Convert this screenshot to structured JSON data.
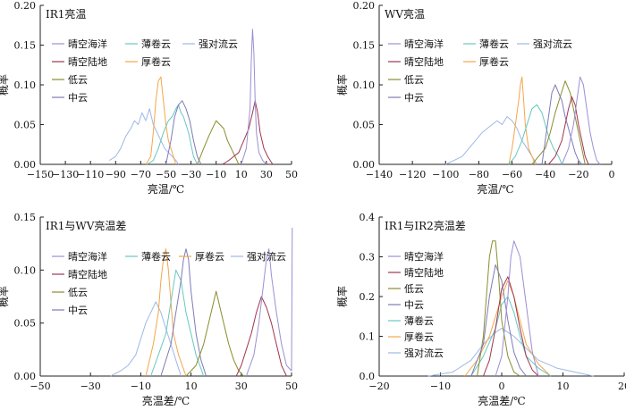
{
  "colors": {
    "ocean": "#9c8fd4",
    "land": "#a0354f",
    "low": "#8a8d2c",
    "mid": "#7e7bb8",
    "cirrostratus": "#66c8c0",
    "cirrus": "#f4a64a",
    "conv": "#9db8e8"
  },
  "chart_data": [
    {
      "type": "line",
      "title": "IR1亮温",
      "xlabel": "亮温/℃",
      "ylabel": "概率",
      "xlim": [
        -150,
        50
      ],
      "ylim": [
        0,
        0.2
      ],
      "xticks": [
        -150,
        -130,
        -110,
        -90,
        -70,
        -50,
        -30,
        -10,
        10,
        30,
        50
      ],
      "yticks": [
        "0.00",
        "0.05",
        "0.10",
        "0.15",
        "0.20"
      ],
      "legend": [
        "晴空海洋",
        "薄卷云",
        "强对流云",
        "晴空陆地",
        "厚卷云",
        "低云",
        "中云"
      ],
      "series": [
        {
          "key": "conv",
          "name": "强对流云",
          "x": [
            -95,
            -90,
            -86,
            -82,
            -78,
            -75,
            -72,
            -69,
            -66,
            -63,
            -60,
            -57,
            -54,
            -51,
            -48,
            -45,
            -42,
            -40
          ],
          "y": [
            0.005,
            0.01,
            0.02,
            0.035,
            0.045,
            0.055,
            0.05,
            0.065,
            0.055,
            0.07,
            0.05,
            0.04,
            0.03,
            0.02,
            0.015,
            0.01,
            0.005,
            0
          ]
        },
        {
          "key": "cirrus",
          "name": "厚卷云",
          "x": [
            -66,
            -62,
            -60,
            -58,
            -56,
            -54,
            -52,
            -50,
            -48,
            -46,
            -44,
            -42
          ],
          "y": [
            0,
            0.01,
            0.04,
            0.08,
            0.105,
            0.11,
            0.08,
            0.05,
            0.03,
            0.02,
            0.01,
            0
          ]
        },
        {
          "key": "cirrostratus",
          "name": "薄卷云",
          "x": [
            -65,
            -60,
            -56,
            -52,
            -48,
            -45,
            -42,
            -40,
            -38,
            -36,
            -34,
            -32,
            -30,
            -28,
            -25
          ],
          "y": [
            0,
            0.005,
            0.02,
            0.04,
            0.055,
            0.06,
            0.07,
            0.075,
            0.065,
            0.06,
            0.05,
            0.04,
            0.025,
            0.01,
            0
          ]
        },
        {
          "key": "mid",
          "name": "中云",
          "x": [
            -50,
            -46,
            -43,
            -40,
            -37,
            -34,
            -31,
            -28,
            -25,
            -22
          ],
          "y": [
            0,
            0.03,
            0.06,
            0.075,
            0.08,
            0.07,
            0.055,
            0.03,
            0.01,
            0
          ]
        },
        {
          "key": "low",
          "name": "低云",
          "x": [
            -25,
            -20,
            -16,
            -13,
            -10,
            -7,
            -4,
            -1,
            2,
            5,
            8
          ],
          "y": [
            0,
            0.02,
            0.035,
            0.045,
            0.055,
            0.05,
            0.045,
            0.03,
            0.02,
            0.01,
            0
          ]
        },
        {
          "key": "land",
          "name": "晴空陆地",
          "x": [
            -5,
            0,
            4,
            8,
            12,
            16,
            19,
            21,
            23,
            25,
            28,
            31,
            35
          ],
          "y": [
            0,
            0.005,
            0.01,
            0.015,
            0.03,
            0.045,
            0.065,
            0.08,
            0.065,
            0.04,
            0.02,
            0.01,
            0
          ]
        },
        {
          "key": "ocean",
          "name": "晴空海洋",
          "x": [
            10,
            14,
            17,
            18,
            19,
            20,
            21,
            22,
            24,
            27,
            30
          ],
          "y": [
            0,
            0.02,
            0.07,
            0.13,
            0.17,
            0.14,
            0.08,
            0.04,
            0.015,
            0.005,
            0
          ]
        }
      ]
    },
    {
      "type": "line",
      "title": "WV亮温",
      "xlabel": "亮温/℃",
      "ylabel": "概率",
      "xlim": [
        -140,
        0
      ],
      "ylim": [
        0,
        0.2
      ],
      "xticks": [
        -140,
        -120,
        -100,
        -80,
        -60,
        -40,
        -20,
        0
      ],
      "yticks": [
        "0.00",
        "0.05",
        "0.10",
        "0.15",
        "0.20"
      ],
      "legend": [
        "晴空海洋",
        "薄卷云",
        "强对流云",
        "晴空陆地",
        "厚卷云",
        "低云",
        "中云"
      ],
      "series": [
        {
          "key": "conv",
          "name": "强对流云",
          "x": [
            -100,
            -95,
            -90,
            -86,
            -82,
            -78,
            -75,
            -72,
            -69,
            -66,
            -63,
            -60,
            -57,
            -54,
            -51,
            -48,
            -45
          ],
          "y": [
            0,
            0.005,
            0.01,
            0.02,
            0.03,
            0.04,
            0.045,
            0.05,
            0.055,
            0.05,
            0.06,
            0.055,
            0.045,
            0.03,
            0.02,
            0.01,
            0
          ]
        },
        {
          "key": "cirrus",
          "name": "厚卷云",
          "x": [
            -62,
            -60,
            -58,
            -56,
            -55,
            -54,
            -53,
            -52,
            -50,
            -48,
            -46
          ],
          "y": [
            0,
            0.02,
            0.05,
            0.08,
            0.1,
            0.11,
            0.08,
            0.05,
            0.02,
            0.01,
            0
          ]
        },
        {
          "key": "cirrostratus",
          "name": "薄卷云",
          "x": [
            -62,
            -58,
            -54,
            -51,
            -48,
            -45,
            -42,
            -40,
            -38,
            -35,
            -32,
            -30
          ],
          "y": [
            0,
            0.01,
            0.03,
            0.05,
            0.07,
            0.075,
            0.065,
            0.05,
            0.035,
            0.02,
            0.01,
            0
          ]
        },
        {
          "key": "low",
          "name": "低云",
          "x": [
            -48,
            -44,
            -40,
            -37,
            -34,
            -31,
            -28,
            -25,
            -22,
            -19,
            -16
          ],
          "y": [
            0,
            0.01,
            0.02,
            0.04,
            0.065,
            0.085,
            0.105,
            0.09,
            0.06,
            0.03,
            0
          ]
        },
        {
          "key": "mid",
          "name": "中云",
          "x": [
            -42,
            -40,
            -38,
            -36,
            -34,
            -32,
            -30,
            -28,
            -26,
            -24,
            -22,
            -20,
            -18
          ],
          "y": [
            0,
            0.03,
            0.06,
            0.09,
            0.1,
            0.09,
            0.08,
            0.06,
            0.045,
            0.03,
            0.015,
            0.005,
            0
          ]
        },
        {
          "key": "land",
          "name": "晴空陆地",
          "x": [
            -38,
            -34,
            -30,
            -28,
            -26,
            -24,
            -22,
            -20,
            -18,
            -16,
            -14
          ],
          "y": [
            0,
            0.01,
            0.03,
            0.05,
            0.07,
            0.085,
            0.075,
            0.05,
            0.03,
            0.01,
            0
          ]
        },
        {
          "key": "ocean",
          "name": "晴空海洋",
          "x": [
            -30,
            -26,
            -23,
            -21,
            -19,
            -17,
            -15,
            -13,
            -11,
            -9,
            -7
          ],
          "y": [
            0,
            0.02,
            0.05,
            0.08,
            0.11,
            0.1,
            0.07,
            0.04,
            0.02,
            0.005,
            0
          ]
        }
      ]
    },
    {
      "type": "line",
      "title": "IR1与WV亮温差",
      "xlabel": "亮温差/℃",
      "ylabel": "概率",
      "xlim": [
        -50,
        50
      ],
      "ylim": [
        0,
        0.15
      ],
      "xticks": [
        -50,
        -30,
        -10,
        10,
        30,
        50
      ],
      "yticks": [
        "0.00",
        "0.05",
        "0.10",
        "0.15"
      ],
      "legend": [
        "晴空海洋",
        "薄卷云",
        "厚卷云",
        "强对流云",
        "晴空陆地",
        "低云",
        "中云"
      ],
      "series": [
        {
          "key": "conv",
          "name": "强对流云",
          "x": [
            -22,
            -18,
            -15,
            -12,
            -10,
            -8,
            -6,
            -4,
            -2,
            0,
            2,
            4,
            6
          ],
          "y": [
            0,
            0.005,
            0.01,
            0.02,
            0.035,
            0.05,
            0.06,
            0.07,
            0.06,
            0.045,
            0.03,
            0.015,
            0
          ]
        },
        {
          "key": "cirrus",
          "name": "厚卷云",
          "x": [
            -8,
            -5,
            -3,
            -2,
            -1,
            0,
            1,
            2,
            3,
            5,
            8
          ],
          "y": [
            0,
            0.03,
            0.06,
            0.09,
            0.11,
            0.12,
            0.1,
            0.07,
            0.04,
            0.02,
            0
          ]
        },
        {
          "key": "cirrostratus",
          "name": "薄卷云",
          "x": [
            -6,
            -3,
            0,
            2,
            4,
            6,
            8,
            10,
            12,
            15
          ],
          "y": [
            0,
            0.02,
            0.04,
            0.07,
            0.1,
            0.09,
            0.06,
            0.04,
            0.02,
            0
          ]
        },
        {
          "key": "mid",
          "name": "中云",
          "x": [
            -2,
            2,
            4,
            6,
            7,
            8,
            9,
            10,
            12,
            14,
            16
          ],
          "y": [
            0,
            0.03,
            0.06,
            0.09,
            0.11,
            0.12,
            0.11,
            0.08,
            0.04,
            0.015,
            0
          ]
        },
        {
          "key": "low",
          "name": "低云",
          "x": [
            8,
            12,
            15,
            17,
            19,
            20,
            21,
            23,
            25,
            27,
            29,
            31
          ],
          "y": [
            0,
            0.01,
            0.03,
            0.05,
            0.07,
            0.08,
            0.07,
            0.05,
            0.03,
            0.015,
            0.005,
            0
          ]
        },
        {
          "key": "land",
          "name": "晴空陆地",
          "x": [
            28,
            30,
            32,
            34,
            36,
            38,
            40,
            42,
            44,
            46,
            48
          ],
          "y": [
            0,
            0.01,
            0.025,
            0.04,
            0.06,
            0.075,
            0.065,
            0.05,
            0.03,
            0.01,
            0
          ]
        },
        {
          "key": "ocean",
          "name": "晴空海洋",
          "x": [
            32,
            35,
            37,
            39,
            40,
            41,
            42,
            44,
            46,
            48,
            50,
            50.3
          ],
          "y": [
            0,
            0.02,
            0.05,
            0.09,
            0.11,
            0.12,
            0.095,
            0.06,
            0.03,
            0.01,
            0.005,
            0.14
          ]
        }
      ]
    },
    {
      "type": "line",
      "title": "IR1与IR2亮温差",
      "xlabel": "亮温差/℃",
      "ylabel": "概率",
      "xlim": [
        -20,
        20
      ],
      "ylim": [
        0,
        0.4
      ],
      "xticks": [
        -20,
        -10,
        0,
        10,
        20
      ],
      "yticks": [
        "0.0",
        "0.1",
        "0.2",
        "0.3",
        "0.4"
      ],
      "legend": [
        "晴空海洋",
        "晴空陆地",
        "低云",
        "中云",
        "薄卷云",
        "厚卷云",
        "强对流云"
      ],
      "series": [
        {
          "key": "conv",
          "name": "强对流云",
          "x": [
            -12,
            -8,
            -5,
            -3,
            -1,
            0,
            1,
            2,
            4,
            6,
            9,
            12,
            15
          ],
          "y": [
            0,
            0.01,
            0.04,
            0.08,
            0.11,
            0.12,
            0.11,
            0.1,
            0.07,
            0.04,
            0.02,
            0.01,
            0
          ]
        },
        {
          "key": "cirrus",
          "name": "厚卷云",
          "x": [
            -6,
            -4,
            -2,
            -1,
            0,
            1,
            2,
            3,
            4,
            6,
            8
          ],
          "y": [
            0,
            0.04,
            0.1,
            0.15,
            0.2,
            0.24,
            0.2,
            0.14,
            0.08,
            0.03,
            0
          ]
        },
        {
          "key": "cirrostratus",
          "name": "薄卷云",
          "x": [
            -5,
            -3,
            -1,
            0,
            1,
            2,
            3,
            4,
            6,
            8
          ],
          "y": [
            0,
            0.05,
            0.12,
            0.18,
            0.2,
            0.16,
            0.1,
            0.05,
            0.02,
            0
          ]
        },
        {
          "key": "low",
          "name": "低云",
          "x": [
            -4,
            -3,
            -2,
            -1.5,
            -1,
            -0.5,
            0,
            1,
            2,
            3
          ],
          "y": [
            0,
            0.1,
            0.3,
            0.34,
            0.34,
            0.25,
            0.14,
            0.05,
            0.01,
            0
          ]
        },
        {
          "key": "mid",
          "name": "中云",
          "x": [
            -5,
            -3,
            -2,
            -1,
            0,
            1,
            2,
            3,
            4
          ],
          "y": [
            0,
            0.08,
            0.2,
            0.28,
            0.24,
            0.14,
            0.06,
            0.02,
            0
          ]
        },
        {
          "key": "land",
          "name": "晴空陆地",
          "x": [
            -3,
            -2,
            -1,
            0,
            1,
            2,
            3,
            4,
            5,
            6
          ],
          "y": [
            0,
            0.04,
            0.12,
            0.22,
            0.25,
            0.2,
            0.12,
            0.05,
            0.015,
            0
          ]
        },
        {
          "key": "ocean",
          "name": "晴空海洋",
          "x": [
            -1,
            0,
            1,
            1.5,
            2,
            3,
            4,
            5,
            6
          ],
          "y": [
            0,
            0.05,
            0.2,
            0.3,
            0.34,
            0.3,
            0.18,
            0.06,
            0
          ]
        }
      ]
    }
  ]
}
